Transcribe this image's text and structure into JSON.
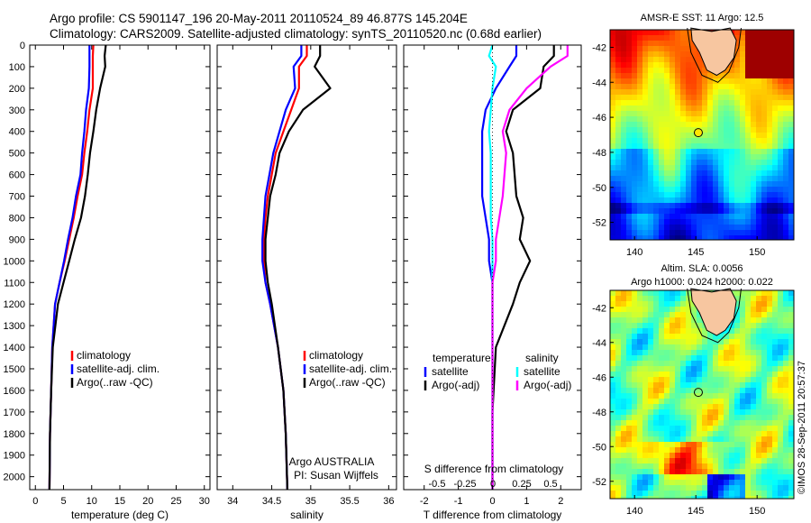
{
  "title": {
    "line1": "Argo profile: CS 5901147_196 20-May-2011 20110524_89 46.877S 145.204E",
    "line2": "Climatology: CARS2009. Satellite-adjusted climatology: synTS_20110520.nc (0.68d earlier)"
  },
  "map_sst": {
    "title": "AMSR-E SST: 11  Argo: 12.5"
  },
  "map_sla": {
    "title_line1": "Altim. SLA: 0.0056",
    "title_line2": "Argo h1000: 0.024 h2000: 0.022"
  },
  "footer": {
    "stamp": "©IMOS 28-Sep-2011 20:57:37"
  },
  "colors": {
    "climatology": "#ff0000",
    "satellite": "#0000ff",
    "argo": "#000000",
    "salinity_sat": "#00ffff",
    "salinity_argo": "#ff00ff",
    "land": "#f7c6a0"
  },
  "chart_data": [
    {
      "id": "temperature",
      "type": "line",
      "xlabel": "temperature (deg C)",
      "ylabel": "",
      "xlim": [
        -1,
        31
      ],
      "ylim": [
        2060,
        0
      ],
      "xticks": [
        0,
        5,
        10,
        15,
        20,
        25,
        30
      ],
      "yticks": [
        0,
        100,
        200,
        300,
        400,
        500,
        600,
        700,
        800,
        900,
        1000,
        1100,
        1200,
        1300,
        1400,
        1500,
        1600,
        1700,
        1800,
        1900,
        2000
      ],
      "legend": {
        "position": "bottom-right",
        "entries": [
          "climatology",
          "satellite-adj. clim.",
          "Argo(..raw -QC)"
        ]
      },
      "series": [
        {
          "name": "climatology",
          "color": "#ff0000",
          "x": [
            10.3,
            10.2,
            10.2,
            10.2,
            9.6,
            9.2,
            8.7,
            8.3,
            7.5,
            6.8,
            6.0,
            5.2,
            4.3,
            3.5,
            3.0,
            2.8,
            2.6,
            2.5
          ],
          "y": [
            0,
            50,
            100,
            200,
            300,
            400,
            500,
            600,
            700,
            800,
            900,
            1000,
            1100,
            1200,
            1400,
            1600,
            1800,
            2060
          ]
        },
        {
          "name": "satellite-adj. clim.",
          "color": "#0000ff",
          "x": [
            9.6,
            9.6,
            9.6,
            9.5,
            9.0,
            8.7,
            8.3,
            8.0,
            7.2,
            6.6,
            5.8,
            5.1,
            4.3,
            3.5,
            3.0,
            2.8,
            2.6,
            2.5
          ],
          "y": [
            0,
            50,
            100,
            200,
            300,
            400,
            500,
            600,
            700,
            800,
            900,
            1000,
            1100,
            1200,
            1400,
            1600,
            1800,
            2060
          ]
        },
        {
          "name": "Argo(..raw -QC)",
          "color": "#000000",
          "x": [
            12.5,
            12.3,
            12.4,
            11.5,
            10.8,
            10.3,
            9.7,
            9.3,
            8.8,
            8.1,
            7.0,
            6.0,
            5.0,
            4.0,
            3.1,
            2.8,
            2.6,
            2.5
          ],
          "y": [
            0,
            50,
            100,
            200,
            300,
            400,
            500,
            600,
            700,
            800,
            900,
            1000,
            1100,
            1200,
            1400,
            1600,
            1800,
            2060
          ]
        }
      ]
    },
    {
      "id": "salinity",
      "type": "line",
      "xlabel": "salinity",
      "ylabel": "",
      "xlim": [
        33.8,
        36.1
      ],
      "ylim": [
        2060,
        0
      ],
      "xticks": [
        34,
        34.5,
        35,
        35.5,
        36
      ],
      "legend": {
        "position": "bottom-right",
        "entries": [
          "climatology",
          "satellite-adj. clim.",
          "Argo(..raw -QC)"
        ]
      },
      "annotation": {
        "line1": "Argo AUSTRALIA",
        "line2": "PI: Susan Wijffels"
      },
      "series": [
        {
          "name": "climatology",
          "color": "#ff0000",
          "x": [
            34.95,
            34.95,
            34.85,
            34.85,
            34.75,
            34.65,
            34.55,
            34.5,
            34.45,
            34.42,
            34.4,
            34.4,
            34.42,
            34.48,
            34.58,
            34.65,
            34.68,
            34.7
          ],
          "y": [
            0,
            50,
            100,
            200,
            300,
            400,
            500,
            600,
            700,
            800,
            900,
            1000,
            1100,
            1200,
            1400,
            1600,
            1800,
            2060
          ]
        },
        {
          "name": "satellite-adj. clim.",
          "color": "#0000ff",
          "x": [
            34.88,
            34.88,
            34.78,
            34.8,
            34.68,
            34.6,
            34.52,
            34.47,
            34.42,
            34.4,
            34.38,
            34.38,
            34.42,
            34.48,
            34.58,
            34.65,
            34.68,
            34.7
          ],
          "y": [
            0,
            50,
            100,
            200,
            300,
            400,
            500,
            600,
            700,
            800,
            900,
            1000,
            1100,
            1200,
            1400,
            1600,
            1800,
            2060
          ]
        },
        {
          "name": "Argo(..raw -QC)",
          "color": "#000000",
          "x": [
            35.12,
            35.12,
            35.05,
            35.25,
            34.9,
            34.72,
            34.6,
            34.55,
            34.48,
            34.45,
            34.42,
            34.42,
            34.45,
            34.5,
            34.58,
            34.65,
            34.68,
            34.7
          ],
          "y": [
            0,
            50,
            100,
            200,
            300,
            400,
            500,
            600,
            700,
            800,
            900,
            1000,
            1100,
            1200,
            1400,
            1600,
            1800,
            2060
          ]
        }
      ]
    },
    {
      "id": "difference",
      "type": "line",
      "xlabel": "T difference from climatology",
      "top_label": "S difference from climatology",
      "xlim": [
        -2.6,
        2.6
      ],
      "ylim": [
        2060,
        0
      ],
      "xticks": [
        -2,
        -1,
        0,
        1,
        2
      ],
      "top_ticks": [
        "-0.5",
        "-0.25",
        "0",
        "0.25",
        "0.5"
      ],
      "legend": {
        "position": "bottom",
        "groups": [
          {
            "heading": "temperature",
            "entries": [
              "satellite",
              "Argo(-adj)"
            ]
          },
          {
            "heading": "salinity",
            "entries": [
              "satellite",
              "Argo(-adj)"
            ]
          }
        ]
      },
      "series": [
        {
          "name": "temperature satellite",
          "color": "#0000ff",
          "x": [
            0.7,
            0.7,
            0.5,
            0.1,
            -0.2,
            -0.3,
            -0.3,
            -0.3,
            -0.2,
            -0.1,
            -0.1,
            0.0,
            0.0,
            0.0,
            0.0,
            0.0
          ],
          "y": [
            0,
            50,
            100,
            200,
            300,
            400,
            500,
            700,
            800,
            900,
            1000,
            1100,
            1200,
            1400,
            1700,
            2060
          ]
        },
        {
          "name": "temperature Argo(-adj)",
          "color": "#000000",
          "x": [
            1.8,
            1.8,
            1.5,
            1.4,
            0.6,
            0.4,
            0.6,
            0.7,
            0.9,
            0.8,
            1.1,
            0.8,
            0.6,
            0.1,
            0.0,
            0.0
          ],
          "y": [
            0,
            50,
            100,
            200,
            300,
            400,
            500,
            700,
            800,
            900,
            1000,
            1100,
            1200,
            1400,
            1700,
            2060
          ]
        },
        {
          "name": "salinity satellite",
          "color": "#00ffff",
          "x": [
            0.0,
            -0.1,
            0.1,
            0.0,
            -0.05,
            -0.1,
            -0.05,
            -0.05,
            -0.05,
            0.0,
            0.0,
            0.0,
            0.0,
            0.0,
            0.0,
            0.0
          ],
          "y": [
            0,
            50,
            100,
            200,
            300,
            400,
            500,
            700,
            800,
            900,
            1000,
            1100,
            1200,
            1400,
            1700,
            2060
          ]
        },
        {
          "name": "salinity Argo(-adj)",
          "color": "#ff00ff",
          "x": [
            2.2,
            2.2,
            1.7,
            1.0,
            0.5,
            0.3,
            0.4,
            0.3,
            0.2,
            0.1,
            0.1,
            0.0,
            0.0,
            0.0,
            0.0,
            0.0
          ],
          "y": [
            0,
            50,
            100,
            200,
            300,
            400,
            500,
            700,
            800,
            900,
            1000,
            1100,
            1200,
            1400,
            1700,
            2060
          ]
        }
      ]
    },
    {
      "id": "sst_map",
      "type": "heatmap",
      "title": "AMSR-E SST: 11  Argo: 12.5",
      "xlim": [
        138,
        153
      ],
      "ylim": [
        -53,
        -41
      ],
      "xticks": [
        140,
        145,
        150
      ],
      "yticks": [
        -42,
        -44,
        -46,
        -48,
        -50,
        -52
      ],
      "marker": {
        "lon": 145.204,
        "lat": -46.877
      }
    },
    {
      "id": "sla_map",
      "type": "heatmap",
      "title": "Altim. SLA: 0.0056",
      "subtitle": "Argo h1000: 0.024 h2000: 0.022",
      "xlim": [
        138,
        153
      ],
      "ylim": [
        -53,
        -41
      ],
      "xticks": [
        140,
        145,
        150
      ],
      "yticks": [
        -42,
        -44,
        -46,
        -48,
        -50,
        -52
      ],
      "marker": {
        "lon": 145.204,
        "lat": -46.877
      }
    }
  ]
}
